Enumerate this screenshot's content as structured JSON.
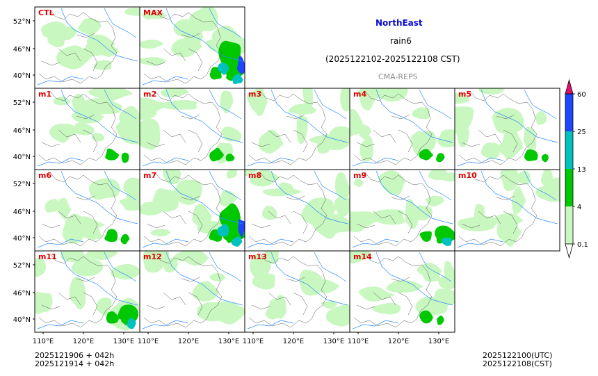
{
  "title": "NorthEast",
  "variable": "rain6",
  "period": "(2025122102-2025122108 CST)",
  "source": "CMA-REPS",
  "init_lines": [
    "2025121906  +  042h",
    "2025121914  +  042h"
  ],
  "valid_lines": [
    "2025122100(UTC)",
    "2025122108(CST)"
  ],
  "lat_labels": [
    "52°N",
    "46°N",
    "40°N"
  ],
  "lon_labels": [
    "110°E",
    "120°E",
    "130°E"
  ],
  "panels": [
    {
      "label": "CTL",
      "intensity": 1
    },
    {
      "label": "MAX",
      "intensity": 4
    },
    {
      "label": "m1",
      "intensity": 2
    },
    {
      "label": "m2",
      "intensity": 2
    },
    {
      "label": "m3",
      "intensity": 1
    },
    {
      "label": "m4",
      "intensity": 2
    },
    {
      "label": "m5",
      "intensity": 2
    },
    {
      "label": "m6",
      "intensity": 2
    },
    {
      "label": "m7",
      "intensity": 4
    },
    {
      "label": "m8",
      "intensity": 1
    },
    {
      "label": "m9",
      "intensity": 3
    },
    {
      "label": "m10",
      "intensity": 1
    },
    {
      "label": "m11",
      "intensity": 3
    },
    {
      "label": "m12",
      "intensity": 1
    },
    {
      "label": "m13",
      "intensity": 1
    },
    {
      "label": "m14",
      "intensity": 2
    }
  ],
  "colorbar": {
    "levels": [
      "0.1",
      "4",
      "13",
      "25",
      "60"
    ],
    "colors": [
      "#c8f7c0",
      "#00c800",
      "#00c0c0",
      "#1e46ff"
    ],
    "over_color": "#e0106e",
    "under_color": "#ffffff"
  }
}
